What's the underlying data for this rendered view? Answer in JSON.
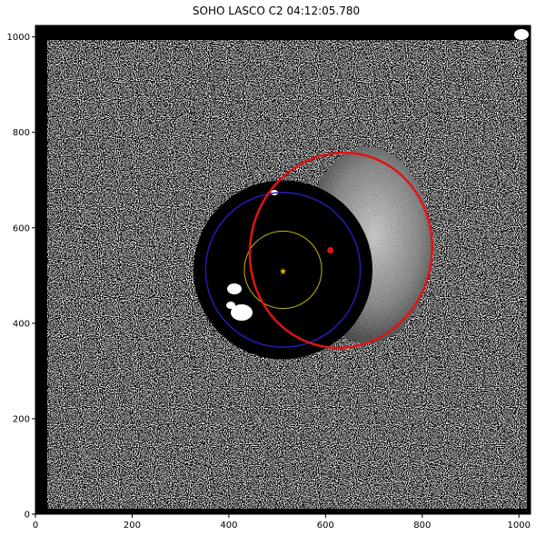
{
  "figure": {
    "title": "SOHO LASCO C2 04:12:05.780"
  },
  "axes": {
    "xlim": [
      0,
      1024
    ],
    "ylim": [
      0,
      1024
    ],
    "xticks": [
      "0",
      "200",
      "400",
      "600",
      "800",
      "1000"
    ],
    "yticks": [
      "0",
      "200",
      "400",
      "600",
      "800",
      "1000"
    ]
  },
  "image": {
    "description_kind": "coronagraph difference image",
    "background_color": "#000000",
    "noise_color": "#ffffff",
    "occulter_center": [
      512,
      512
    ],
    "occulter_radius": 185,
    "cme_front_color": "#bdbdbd"
  },
  "overlays": {
    "sun_marker": {
      "x": 512,
      "y": 507,
      "color": "#d4c200",
      "icon": "star-icon"
    },
    "solar_disk_circle": {
      "cx": 512,
      "cy": 512,
      "r": 80,
      "color": "#c8b400"
    },
    "occulter_circle": {
      "cx": 512,
      "cy": 512,
      "r": 160,
      "color": "#1f1fb4"
    },
    "cme_fit_ellipse": {
      "cx": 632,
      "cy": 553,
      "rx": 188,
      "ry": 205,
      "rotation_deg": 12,
      "color": "#e01414"
    },
    "cme_center_dot": {
      "x": 610,
      "y": 553,
      "color": "#e01414"
    }
  }
}
